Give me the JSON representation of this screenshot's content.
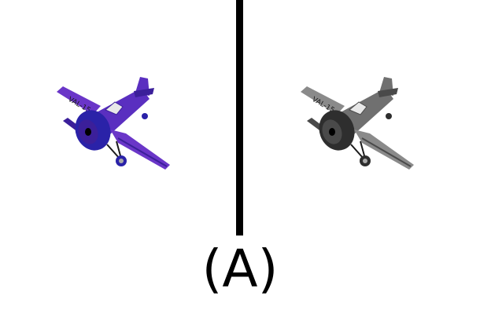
{
  "figure": {
    "caption": "(A)",
    "left_panel": {
      "subject": "airplane-icon",
      "rendering": "color",
      "body_color": "#5a2fc0",
      "engine_color": "#2a22a8",
      "wing_color": "#6a36c8",
      "accent_color": "#3b1f9a",
      "tail_text": "VAL-15"
    },
    "right_panel": {
      "subject": "airplane-icon",
      "rendering": "grayscale",
      "body_color": "#707070",
      "engine_color": "#2e2e2e",
      "wing_color": "#8a8a8a",
      "accent_color": "#4a4a4a",
      "tail_text": "VAL-15"
    },
    "divider_color": "#000000"
  }
}
